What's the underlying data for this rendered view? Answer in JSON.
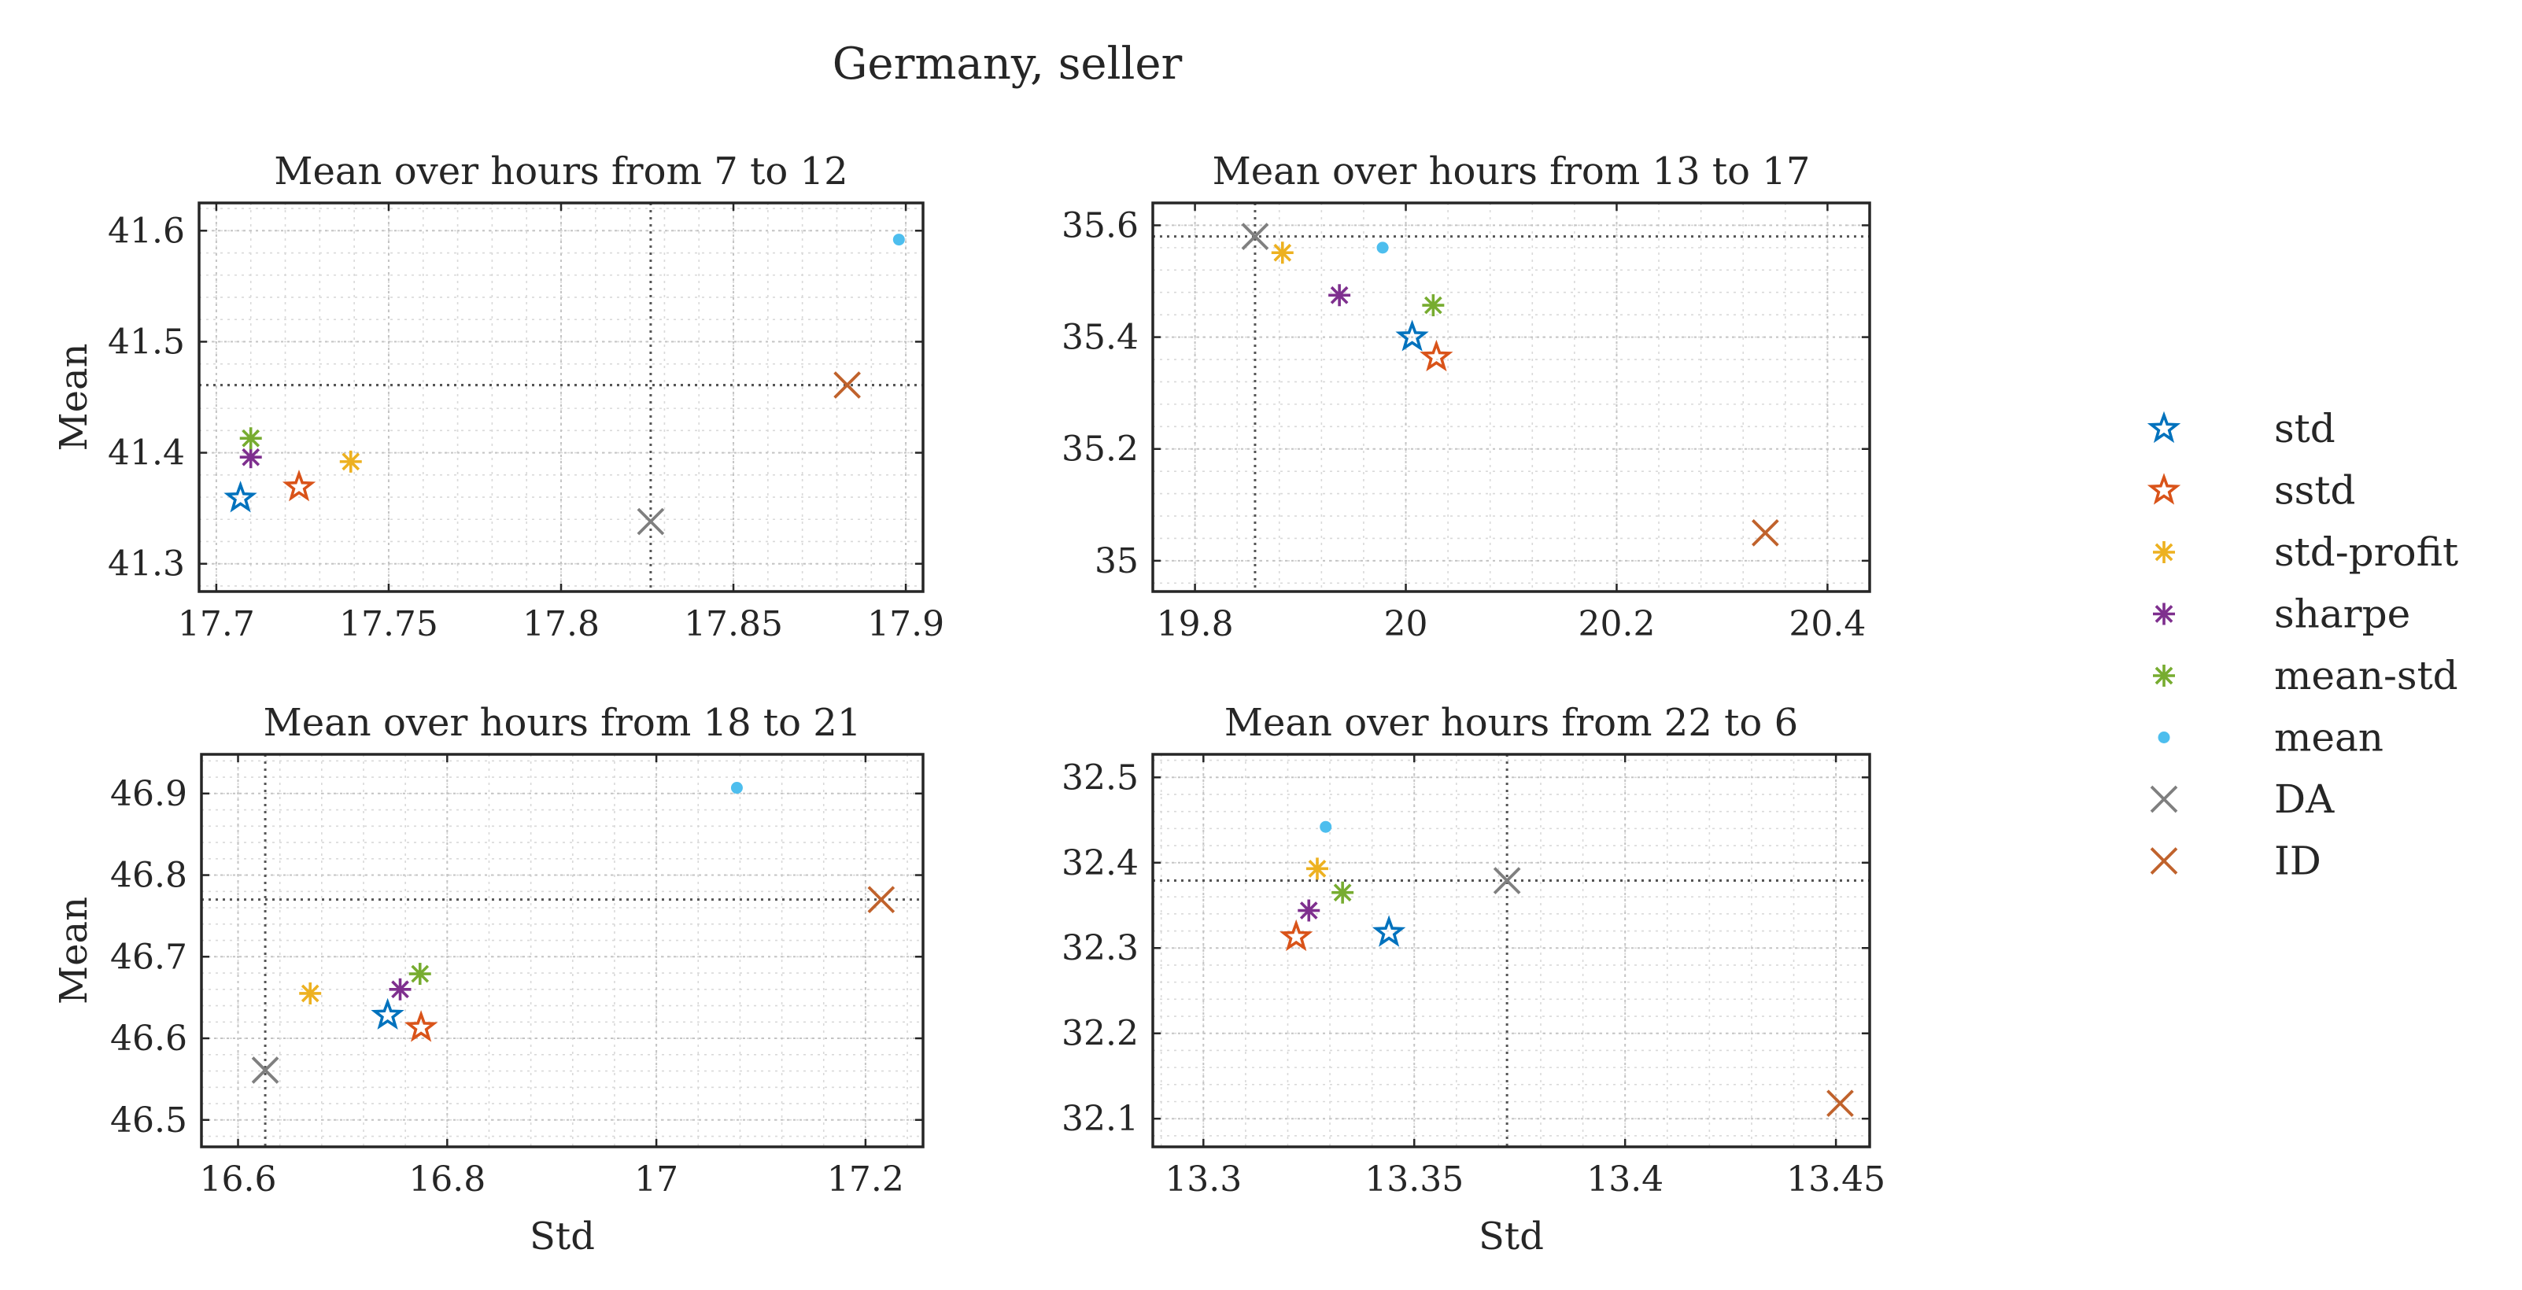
{
  "figure_title": "Germany, seller",
  "legend": [
    {
      "label": "std",
      "marker": "pentagram",
      "color": "#0072BD"
    },
    {
      "label": "sstd",
      "marker": "pentagram",
      "color": "#D95319"
    },
    {
      "label": "std-profit",
      "marker": "asterisk",
      "color": "#EDB120"
    },
    {
      "label": "sharpe",
      "marker": "asterisk",
      "color": "#7E2F8E"
    },
    {
      "label": "mean-std",
      "marker": "asterisk",
      "color": "#77AC30"
    },
    {
      "label": "mean",
      "marker": "dot",
      "color": "#4DBEEE"
    },
    {
      "label": "DA",
      "marker": "x",
      "color": "#7F7F7F"
    },
    {
      "label": "ID",
      "marker": "x",
      "color": "#C0622C"
    }
  ],
  "chart_data": [
    {
      "type": "scatter",
      "title": "Mean over hours from 7 to 12",
      "xlabel": "",
      "ylabel": "Mean",
      "xlim": [
        17.695,
        17.905
      ],
      "ylim": [
        41.275,
        41.625
      ],
      "xticks": [
        17.7,
        17.75,
        17.8,
        17.85,
        17.9
      ],
      "xtick_labels": [
        "17.7",
        "17.75",
        "17.8",
        "17.85",
        "17.9"
      ],
      "yticks": [
        41.3,
        41.4,
        41.5,
        41.6
      ],
      "ytick_labels": [
        "41.3",
        "41.4",
        "41.5",
        "41.6"
      ],
      "grid": true,
      "ref_lines": {
        "x": 17.826,
        "y": 41.461
      },
      "points": [
        {
          "series": "std",
          "x": 17.707,
          "y": 41.359
        },
        {
          "series": "sstd",
          "x": 17.724,
          "y": 41.369
        },
        {
          "series": "std-profit",
          "x": 17.739,
          "y": 41.392
        },
        {
          "series": "sharpe",
          "x": 17.71,
          "y": 41.396
        },
        {
          "series": "mean-std",
          "x": 17.71,
          "y": 41.413
        },
        {
          "series": "mean",
          "x": 17.898,
          "y": 41.592
        },
        {
          "series": "DA",
          "x": 17.826,
          "y": 41.338
        },
        {
          "series": "ID",
          "x": 17.883,
          "y": 41.461
        }
      ]
    },
    {
      "type": "scatter",
      "title": "Mean over hours from 13 to 17",
      "xlabel": "",
      "ylabel": "",
      "xlim": [
        19.76,
        20.44
      ],
      "ylim": [
        34.945,
        35.64
      ],
      "xticks": [
        19.8,
        20,
        20.2,
        20.4
      ],
      "xtick_labels": [
        "19.8",
        "20",
        "20.2",
        "20.4"
      ],
      "yticks": [
        35,
        35.2,
        35.4,
        35.6
      ],
      "ytick_labels": [
        "35",
        "35.2",
        "35.4",
        "35.6"
      ],
      "grid": true,
      "ref_lines": {
        "x": 19.857,
        "y": 35.58
      },
      "points": [
        {
          "series": "std",
          "x": 20.006,
          "y": 35.4
        },
        {
          "series": "sstd",
          "x": 20.029,
          "y": 35.364
        },
        {
          "series": "std-profit",
          "x": 19.883,
          "y": 35.551
        },
        {
          "series": "sharpe",
          "x": 19.937,
          "y": 35.475
        },
        {
          "series": "mean-std",
          "x": 20.026,
          "y": 35.457
        },
        {
          "series": "mean",
          "x": 19.978,
          "y": 35.56
        },
        {
          "series": "DA",
          "x": 19.857,
          "y": 35.58
        },
        {
          "series": "ID",
          "x": 20.341,
          "y": 35.05
        }
      ]
    },
    {
      "type": "scatter",
      "title": "Mean over hours from 18 to 21",
      "xlabel": "Std",
      "ylabel": "Mean",
      "xlim": [
        16.565,
        17.255
      ],
      "ylim": [
        46.467,
        46.948
      ],
      "xticks": [
        16.6,
        16.8,
        17,
        17.2
      ],
      "xtick_labels": [
        "16.6",
        "16.8",
        "17",
        "17.2"
      ],
      "yticks": [
        46.5,
        46.6,
        46.7,
        46.8,
        46.9
      ],
      "ytick_labels": [
        "46.5",
        "46.6",
        "46.7",
        "46.8",
        "46.9"
      ],
      "grid": true,
      "ref_lines": {
        "x": 16.626,
        "y": 46.77
      },
      "points": [
        {
          "series": "std",
          "x": 16.743,
          "y": 46.628
        },
        {
          "series": "sstd",
          "x": 16.775,
          "y": 46.613
        },
        {
          "series": "std-profit",
          "x": 16.669,
          "y": 46.655
        },
        {
          "series": "sharpe",
          "x": 16.755,
          "y": 46.66
        },
        {
          "series": "mean-std",
          "x": 16.774,
          "y": 46.679
        },
        {
          "series": "mean",
          "x": 17.077,
          "y": 46.907
        },
        {
          "series": "DA",
          "x": 16.626,
          "y": 46.561
        },
        {
          "series": "ID",
          "x": 17.215,
          "y": 46.77
        }
      ]
    },
    {
      "type": "scatter",
      "title": "Mean over hours from 22 to 6",
      "xlabel": "Std",
      "ylabel": "",
      "xlim": [
        13.288,
        13.458
      ],
      "ylim": [
        32.067,
        32.527
      ],
      "xticks": [
        13.3,
        13.35,
        13.4,
        13.45
      ],
      "xtick_labels": [
        "13.3",
        "13.35",
        "13.4",
        "13.45"
      ],
      "yticks": [
        32.1,
        32.2,
        32.3,
        32.4,
        32.5
      ],
      "ytick_labels": [
        "32.1",
        "32.2",
        "32.3",
        "32.4",
        "32.5"
      ],
      "grid": true,
      "ref_lines": {
        "x": 13.372,
        "y": 32.379
      },
      "points": [
        {
          "series": "std",
          "x": 13.344,
          "y": 32.318
        },
        {
          "series": "sstd",
          "x": 13.322,
          "y": 32.313
        },
        {
          "series": "std-profit",
          "x": 13.327,
          "y": 32.393
        },
        {
          "series": "sharpe",
          "x": 13.325,
          "y": 32.344
        },
        {
          "series": "mean-std",
          "x": 13.333,
          "y": 32.365
        },
        {
          "series": "mean",
          "x": 13.329,
          "y": 32.442
        },
        {
          "series": "DA",
          "x": 13.372,
          "y": 32.379
        },
        {
          "series": "ID",
          "x": 13.451,
          "y": 32.118
        }
      ]
    }
  ]
}
